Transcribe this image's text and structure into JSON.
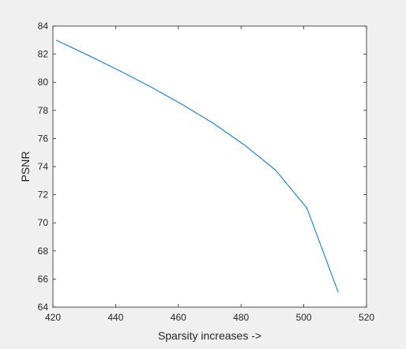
{
  "chart_data": {
    "type": "line",
    "title": "",
    "xlabel": "Sparsity increases ->",
    "ylabel": "PSNR",
    "xlim": [
      420,
      520
    ],
    "ylim": [
      64,
      84
    ],
    "xticks": [
      420,
      440,
      460,
      480,
      500,
      520
    ],
    "yticks": [
      64,
      66,
      68,
      70,
      72,
      74,
      76,
      78,
      80,
      82,
      84
    ],
    "grid": false,
    "series": [
      {
        "color": "#0072bd",
        "x": [
          421,
          431,
          441,
          451,
          461,
          471,
          481,
          491,
          501,
          511
        ],
        "y": [
          83.0,
          81.95,
          80.85,
          79.7,
          78.45,
          77.1,
          75.55,
          73.75,
          71.05,
          65.05
        ]
      }
    ]
  }
}
